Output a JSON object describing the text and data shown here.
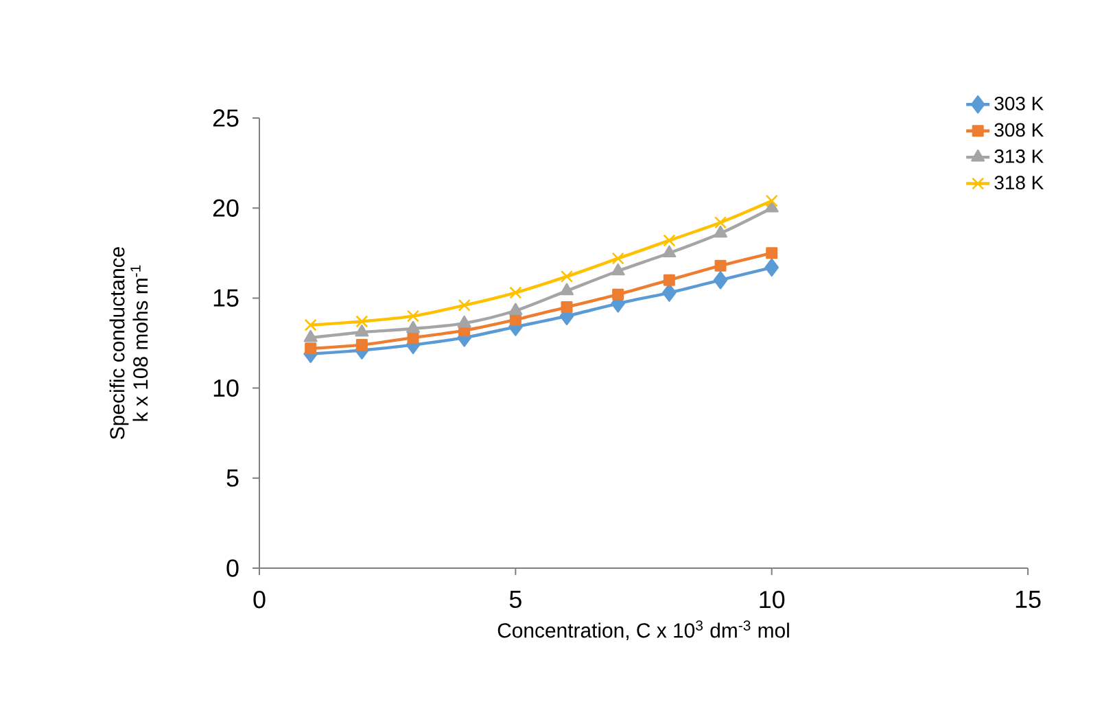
{
  "chart_data": {
    "type": "line",
    "xlabel": "Concentration, C x 10$^{3}$ dm$^{-3}$ mol",
    "ylabel": "Specific conductance\nk x 108 mohs m$^{-1}$",
    "x": [
      1,
      2,
      3,
      4,
      5,
      6,
      7,
      8,
      9,
      10
    ],
    "xlim": [
      0,
      15
    ],
    "xticks": [
      0,
      5,
      10,
      15
    ],
    "ylim": [
      0,
      25
    ],
    "yticks": [
      0,
      5,
      10,
      15,
      20,
      25
    ],
    "grid": false,
    "legend": "top right",
    "series": [
      {
        "name": "303 K",
        "color": "#5b9bd5",
        "marker": "diamond",
        "values": [
          11.9,
          12.1,
          12.4,
          12.8,
          13.4,
          14.0,
          14.7,
          15.3,
          16.0,
          16.7
        ]
      },
      {
        "name": "308 K",
        "color": "#ed7d31",
        "marker": "square",
        "values": [
          12.2,
          12.4,
          12.8,
          13.2,
          13.8,
          14.5,
          15.2,
          16.0,
          16.8,
          17.5
        ]
      },
      {
        "name": "313 K",
        "color": "#a5a5a5",
        "marker": "triangle",
        "values": [
          12.8,
          13.1,
          13.3,
          13.6,
          14.3,
          15.4,
          16.5,
          17.5,
          18.6,
          20.0
        ]
      },
      {
        "name": "318 K",
        "color": "#ffc000",
        "marker": "cross",
        "values": [
          13.5,
          13.7,
          14.0,
          14.6,
          15.3,
          16.2,
          17.2,
          18.2,
          19.2,
          20.4
        ]
      }
    ]
  }
}
